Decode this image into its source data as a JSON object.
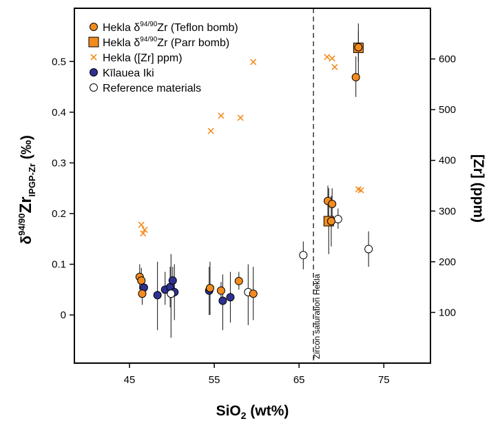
{
  "chart_data": {
    "type": "scatter",
    "x_axis": {
      "label_main": "SiO",
      "label_sub": "2",
      "label_rest": " (wt%)",
      "range": [
        38.5,
        80.5
      ],
      "ticks": [
        45,
        55,
        65,
        75
      ]
    },
    "y_left": {
      "label_main": "δ",
      "label_sup": "94/90",
      "label_mid": "Zr",
      "label_sub": "IPGP-Zr",
      "label_unit": "(‰)",
      "range": [
        -0.095,
        0.605
      ],
      "ticks": [
        0,
        0.1,
        0.2,
        0.3,
        0.4,
        0.5
      ],
      "tick_labels": [
        "0",
        "0.1",
        "0.2",
        "0.3",
        "0.4",
        "0.5"
      ]
    },
    "y_right": {
      "label": "[Zr] (ppm)",
      "range": [
        0,
        700
      ],
      "ticks": [
        100,
        200,
        300,
        400,
        500,
        600
      ],
      "tick_labels": [
        "100",
        "200",
        "300",
        "400",
        "500",
        "600"
      ]
    },
    "legend": {
      "position": "top-left",
      "entries": [
        {
          "series": "teflon",
          "pre": "Hekla δ",
          "sup": "94/90",
          "post": "Zr (Teflon bomb)"
        },
        {
          "series": "parr",
          "pre": " Hekla δ",
          "sup": "94/90",
          "post": "Zr (Parr bomb)"
        },
        {
          "series": "ppm",
          "pre": "Hekla ([Zr] ppm)",
          "sup": "",
          "post": ""
        },
        {
          "series": "kilauea",
          "pre": "Kīlauea Iki",
          "sup": "",
          "post": ""
        },
        {
          "series": "reference",
          "pre": "Reference materials",
          "sup": "",
          "post": ""
        }
      ]
    },
    "annotation": {
      "text": "Zircon saturation Hekla",
      "x": 66.7
    },
    "colors": {
      "orange": "#f28c1e",
      "navy": "#2e3192",
      "errorbar": "#222222"
    },
    "series": [
      {
        "id": "teflon",
        "axis": "left",
        "marker": "circle",
        "points": [
          {
            "x": 46.2,
            "y": 0.075,
            "lo": 0.05,
            "hi": 0.1
          },
          {
            "x": 46.4,
            "y": 0.068,
            "lo": 0.043,
            "hi": 0.093
          },
          {
            "x": 46.5,
            "y": 0.042,
            "lo": 0.02,
            "hi": 0.065
          },
          {
            "x": 54.5,
            "y": 0.053,
            "lo": 0.0,
            "hi": 0.105
          },
          {
            "x": 55.8,
            "y": 0.048,
            "lo": 0.03,
            "hi": 0.065
          },
          {
            "x": 57.9,
            "y": 0.067,
            "lo": 0.05,
            "hi": 0.085
          },
          {
            "x": 59.6,
            "y": 0.042,
            "lo": -0.01,
            "hi": 0.095
          },
          {
            "x": 68.4,
            "y": 0.225,
            "lo": 0.195,
            "hi": 0.255
          },
          {
            "x": 68.9,
            "y": 0.219,
            "lo": 0.19,
            "hi": 0.25
          },
          {
            "x": 68.8,
            "y": 0.185,
            "lo": 0.135,
            "hi": 0.235
          },
          {
            "x": 71.7,
            "y": 0.469,
            "lo": 0.43,
            "hi": 0.51
          },
          {
            "x": 72.0,
            "y": 0.528,
            "lo": 0.5,
            "hi": 0.56
          }
        ]
      },
      {
        "id": "parr",
        "axis": "left",
        "marker": "square",
        "points": [
          {
            "x": 68.5,
            "y": 0.185,
            "lo": 0.12,
            "hi": 0.25
          },
          {
            "x": 72.0,
            "y": 0.527,
            "lo": 0.47,
            "hi": 0.575
          }
        ]
      },
      {
        "id": "ppm",
        "axis": "right",
        "marker": "x",
        "points": [
          {
            "x": 46.4,
            "y": 273
          },
          {
            "x": 46.8,
            "y": 263
          },
          {
            "x": 46.6,
            "y": 256
          },
          {
            "x": 54.6,
            "y": 458
          },
          {
            "x": 55.8,
            "y": 488
          },
          {
            "x": 58.1,
            "y": 484
          },
          {
            "x": 59.6,
            "y": 594
          },
          {
            "x": 68.3,
            "y": 604
          },
          {
            "x": 68.9,
            "y": 601
          },
          {
            "x": 69.2,
            "y": 584
          },
          {
            "x": 72.0,
            "y": 343
          },
          {
            "x": 72.3,
            "y": 341
          }
        ]
      },
      {
        "id": "kilauea",
        "axis": "left",
        "marker": "circle",
        "points": [
          {
            "x": 46.7,
            "y": 0.054,
            "lo": 0.035,
            "hi": 0.073
          },
          {
            "x": 48.3,
            "y": 0.039,
            "lo": -0.03,
            "hi": 0.105
          },
          {
            "x": 49.2,
            "y": 0.05,
            "lo": 0.02,
            "hi": 0.085
          },
          {
            "x": 49.8,
            "y": 0.055,
            "lo": 0.015,
            "hi": 0.095
          },
          {
            "x": 50.1,
            "y": 0.068,
            "lo": 0.04,
            "hi": 0.095
          },
          {
            "x": 50.3,
            "y": 0.045,
            "lo": -0.01,
            "hi": 0.1
          },
          {
            "x": 54.4,
            "y": 0.048,
            "lo": 0.0,
            "hi": 0.095
          },
          {
            "x": 56.0,
            "y": 0.028,
            "lo": -0.03,
            "hi": 0.08
          },
          {
            "x": 56.9,
            "y": 0.035,
            "lo": -0.015,
            "hi": 0.085
          }
        ]
      },
      {
        "id": "reference",
        "axis": "left",
        "marker": "circle",
        "points": [
          {
            "x": 49.9,
            "y": 0.042,
            "lo": -0.045,
            "hi": 0.12
          },
          {
            "x": 59.0,
            "y": 0.045,
            "lo": -0.02,
            "hi": 0.1
          },
          {
            "x": 65.5,
            "y": 0.118,
            "lo": 0.09,
            "hi": 0.145
          },
          {
            "x": 69.6,
            "y": 0.189,
            "lo": 0.17,
            "hi": 0.21
          },
          {
            "x": 73.2,
            "y": 0.13,
            "lo": 0.095,
            "hi": 0.165
          }
        ]
      }
    ]
  }
}
